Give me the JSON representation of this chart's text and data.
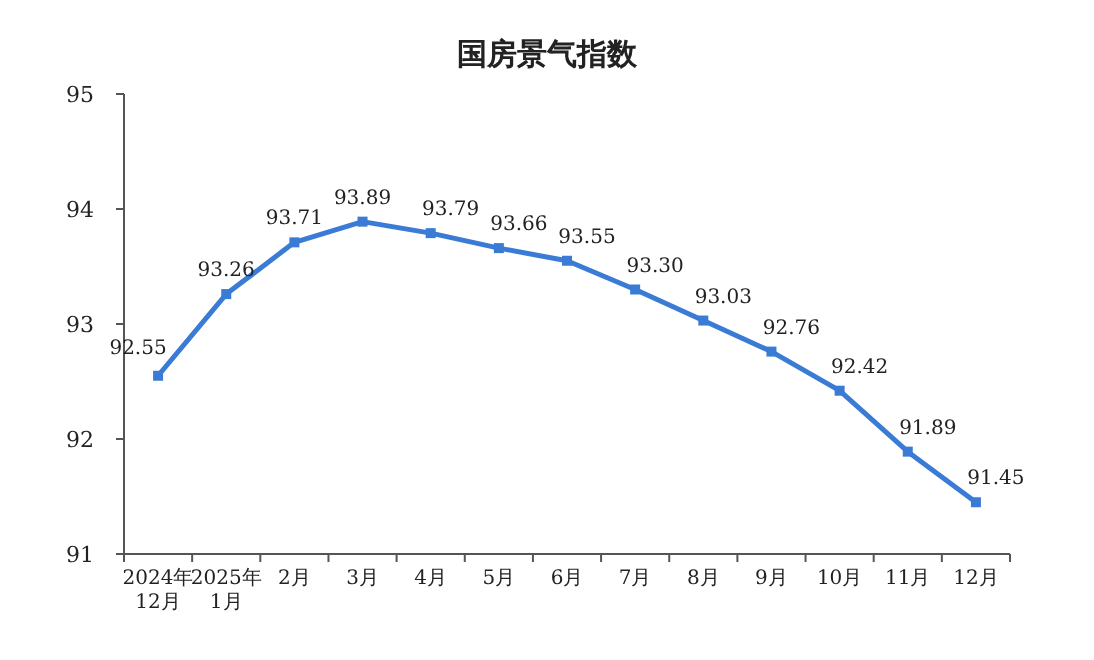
{
  "chart_data": {
    "type": "line",
    "title": "国房景气指数",
    "categories": [
      "2024年\n12月",
      "2025年\n1月",
      "2月",
      "3月",
      "4月",
      "5月",
      "6月",
      "7月",
      "8月",
      "9月",
      "10月",
      "11月",
      "12月"
    ],
    "values": [
      92.55,
      93.26,
      93.71,
      93.89,
      93.79,
      93.66,
      93.55,
      93.3,
      93.03,
      92.76,
      92.42,
      91.89,
      91.45
    ],
    "value_labels": [
      "92.55",
      "93.26",
      "93.71",
      "93.89",
      "93.79",
      "93.66",
      "93.55",
      "93.30",
      "93.03",
      "92.76",
      "92.42",
      "91.89",
      "91.45"
    ],
    "color": "#3a7bd5",
    "ylim": [
      91,
      95
    ],
    "yticks": [
      91,
      92,
      93,
      94,
      95
    ],
    "marker": "square",
    "grid": false
  }
}
